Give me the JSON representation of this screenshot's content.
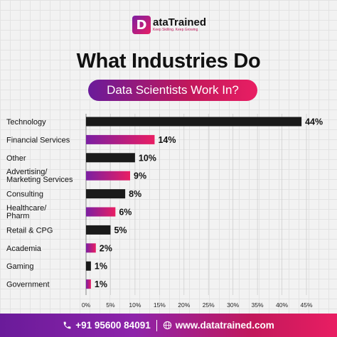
{
  "brand": {
    "name": "DataTrained",
    "mark": "D",
    "name_rest": "ataTrained",
    "tagline": "Keep Skilling. Keep Growing"
  },
  "title": "What Industries Do",
  "subtitle": "Data Scientists Work In?",
  "footer": {
    "phone": "+91 95600 84091",
    "website": "www.datatrained.com",
    "phone_icon": "phone-icon",
    "web_icon": "globe-icon"
  },
  "colors": {
    "dark_bar": "#1a1a1a",
    "gradient_start": "#7b1fa2",
    "gradient_end": "#e91e63"
  },
  "chart_data": {
    "type": "bar",
    "orientation": "horizontal",
    "categories": [
      "Technology",
      "Financial Services",
      "Other",
      "Advertising/ Marketing Services",
      "Consulting",
      "Healthcare/ Pharm",
      "Retail & CPG",
      "Academia",
      "Gaming",
      "Government"
    ],
    "values": [
      44,
      14,
      10,
      9,
      8,
      6,
      5,
      2,
      1,
      1
    ],
    "data_labels": [
      "44%",
      "14%",
      "10%",
      "9%",
      "8%",
      "6%",
      "5%",
      "2%",
      "1%",
      "1%"
    ],
    "bar_style": [
      "dark",
      "gradient",
      "dark",
      "gradient",
      "dark",
      "gradient",
      "dark",
      "gradient",
      "dark",
      "gradient"
    ],
    "xlim": [
      0,
      45
    ],
    "xticks": [
      "0%",
      "5%",
      "10%",
      "15%",
      "20%",
      "25%",
      "30%",
      "35%",
      "40%",
      "45%"
    ],
    "grid": true
  }
}
